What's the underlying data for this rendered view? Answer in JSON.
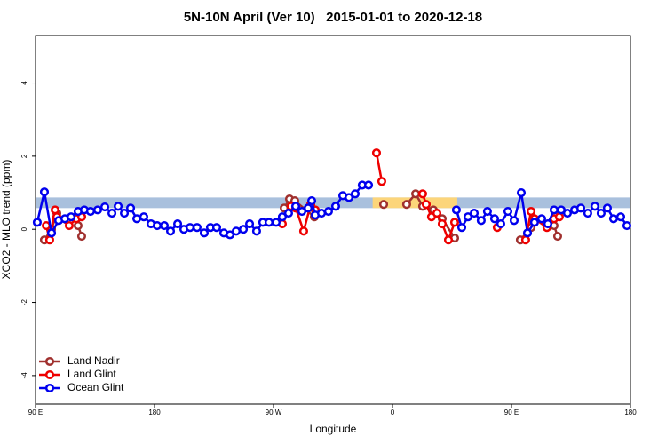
{
  "chart_data": {
    "type": "scatter-line",
    "title": "5N-10N April (Ver 10)   2015-01-01 to 2020-12-18",
    "x_label": "Longitude",
    "y_label": "XCO2 - MLO trend (ppm)",
    "xlim": [
      90,
      540
    ],
    "xticks": [
      {
        "value": 90,
        "label": "90 E"
      },
      180,
      {
        "value": 270,
        "label": "90 W"
      },
      {
        "value": 360,
        "label": "0"
      },
      {
        "value": 450,
        "label": "90 E"
      },
      {
        "value": 540,
        "label": "180"
      }
    ],
    "ylim": [
      -4.78,
      5.3
    ],
    "yticks": [
      -4,
      -2,
      0,
      2,
      4
    ],
    "legend": "bottom-left",
    "reference_band": {
      "ylim": [
        0.58,
        0.87
      ],
      "color": "#a9c0dd"
    },
    "highlight_band": {
      "xlim": [
        345,
        409
      ],
      "ylim": [
        0.58,
        0.87
      ],
      "color": "#fcd57a"
    },
    "series": [
      {
        "name": "Land Nadir",
        "color": "#a0302e",
        "x": [
          96.7,
          102.1,
          106.1,
          122.2,
          124.9,
          278.1,
          282.1,
          286.1,
          300.9,
          353.3,
          370.7,
          377.5,
          382.8,
          390.9,
          397.6,
          407.0,
          456.7,
          464.8,
          482.2,
          484.9
        ],
        "values": [
          -0.29,
          0.0,
          0.44,
          0.1,
          -0.19,
          0.58,
          0.83,
          0.78,
          0.34,
          0.68,
          0.68,
          0.97,
          0.63,
          0.53,
          0.29,
          -0.24,
          -0.29,
          0.05,
          0.1,
          -0.19
        ]
      },
      {
        "name": "Land Glint",
        "color": "#ee0000",
        "x": [
          98.1,
          100.7,
          104.8,
          106.1,
          115.5,
          120.9,
          124.9,
          276.7,
          283.4,
          286.8,
          292.8,
          298.2,
          301.6,
          347.9,
          351.9,
          382.8,
          385.5,
          389.5,
          393.6,
          397.6,
          402.3,
          407.0,
          439.2,
          460.7,
          464.8,
          467.4,
          476.8,
          482.2,
          486.2
        ],
        "values": [
          0.1,
          -0.29,
          0.53,
          0.34,
          0.1,
          0.29,
          0.34,
          0.15,
          0.63,
          0.58,
          -0.05,
          0.68,
          0.53,
          2.09,
          1.31,
          0.97,
          0.68,
          0.34,
          0.44,
          0.15,
          -0.29,
          0.19,
          0.05,
          -0.29,
          0.49,
          0.29,
          0.05,
          0.29,
          0.34
        ]
      },
      {
        "name": "Ocean Glint",
        "color": "#0000ee",
        "x": [
          91.3,
          96.7,
          102.1,
          107.5,
          112.2,
          116.9,
          122.2,
          126.9,
          131.6,
          137.0,
          142.4,
          147.8,
          152.5,
          157.2,
          161.9,
          166.6,
          171.9,
          177.3,
          182.0,
          187.4,
          192.1,
          197.5,
          202.2,
          206.9,
          212.2,
          217.6,
          222.3,
          227.0,
          232.4,
          237.1,
          241.8,
          247.2,
          251.9,
          257.2,
          261.9,
          266.6,
          272.0,
          276.7,
          281.4,
          286.8,
          291.5,
          296.2,
          298.9,
          301.6,
          306.3,
          311.6,
          317.0,
          322.4,
          327.1,
          331.8,
          337.1,
          341.9,
          408.3,
          412.4,
          417.1,
          421.8,
          427.1,
          431.8,
          437.2,
          441.9,
          447.3,
          452.0,
          457.4,
          462.1,
          467.4,
          472.8,
          477.5,
          482.2,
          487.6,
          492.3,
          497.7,
          502.4,
          507.7,
          513.1,
          517.8,
          522.5,
          527.2,
          532.6,
          537.3
        ],
        "values": [
          0.19,
          1.02,
          -0.1,
          0.24,
          0.29,
          0.34,
          0.49,
          0.53,
          0.49,
          0.53,
          0.61,
          0.44,
          0.63,
          0.44,
          0.58,
          0.29,
          0.34,
          0.15,
          0.1,
          0.1,
          -0.05,
          0.15,
          0.0,
          0.05,
          0.05,
          -0.1,
          0.05,
          0.05,
          -0.1,
          -0.15,
          -0.05,
          0.0,
          0.15,
          -0.05,
          0.19,
          0.19,
          0.19,
          0.34,
          0.44,
          0.63,
          0.49,
          0.58,
          0.78,
          0.39,
          0.44,
          0.49,
          0.63,
          0.92,
          0.87,
          0.97,
          1.21,
          1.21,
          0.53,
          0.05,
          0.34,
          0.44,
          0.24,
          0.49,
          0.29,
          0.15,
          0.49,
          0.24,
          1.0,
          -0.1,
          0.19,
          0.29,
          0.15,
          0.53,
          0.53,
          0.44,
          0.53,
          0.58,
          0.44,
          0.63,
          0.44,
          0.58,
          0.29,
          0.34,
          0.1
        ]
      }
    ]
  }
}
